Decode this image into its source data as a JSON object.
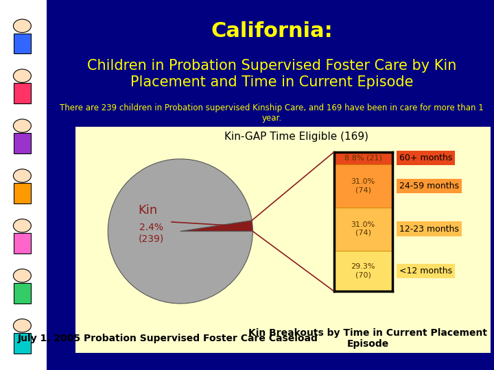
{
  "header": {
    "title": "California:",
    "subtitle": "Children in Probation Supervised Foster Care by Kin Placement and Time in Current Episode",
    "note": "There are 239 children in Probation supervised Kinship Care, and 169 have been in care for more than 1 year."
  },
  "chart_data": [
    {
      "type": "pie",
      "categories": [
        "Kin",
        null
      ],
      "values": [
        2.4,
        97.6
      ],
      "value_labels": [
        "2.4%\n(239)",
        null
      ],
      "colors": [
        "#8b1a1a",
        "#a6a6a6"
      ],
      "caption": "July 1, 2005 Probation Supervised Foster Care Caseload"
    },
    {
      "type": "bar",
      "stacked": true,
      "title": "Kin-GAP Time Eligible (169)",
      "categories": [
        "<12 months",
        "12-23 months",
        "24-59 months",
        "60+ months"
      ],
      "values": [
        29.3,
        31.0,
        31.0,
        8.8
      ],
      "value_labels": [
        "29.3%\n(70)",
        "31.0%\n(74)",
        "31.0%\n(74)",
        "8.8% (21)"
      ],
      "colors": [
        "#ffe066",
        "#ffc04d",
        "#ff9933",
        "#e8471a"
      ],
      "ylim": [
        0,
        100.1
      ],
      "tick_labels": false,
      "caption": "Kin Breakouts by Time in Current Placement Episode"
    }
  ]
}
